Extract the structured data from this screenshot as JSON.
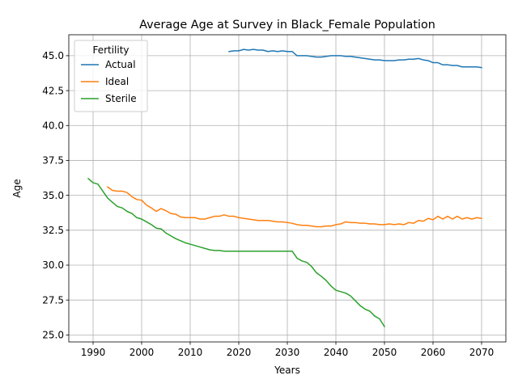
{
  "chart_data": {
    "type": "line",
    "title": "Average Age at Survey in Black_Female Population",
    "xlabel": "Years",
    "ylabel": "Age",
    "xlim": [
      1985,
      2075
    ],
    "ylim": [
      24.5,
      46.5
    ],
    "xticks": [
      1990,
      2000,
      2010,
      2020,
      2030,
      2040,
      2050,
      2060,
      2070
    ],
    "xtick_labels": [
      "1990",
      "2000",
      "2010",
      "2020",
      "2030",
      "2040",
      "2050",
      "2060",
      "2070"
    ],
    "yticks": [
      25.0,
      27.5,
      30.0,
      32.5,
      35.0,
      37.5,
      40.0,
      42.5,
      45.0
    ],
    "ytick_labels": [
      "25.0",
      "27.5",
      "30.0",
      "32.5",
      "35.0",
      "37.5",
      "40.0",
      "42.5",
      "45.0"
    ],
    "grid": true,
    "legend": {
      "title": "Fertility",
      "placement": "upper-left"
    },
    "series": [
      {
        "name": "Actual",
        "color": "#1f77b4",
        "x": [
          2018,
          2019,
          2020,
          2021,
          2022,
          2023,
          2024,
          2025,
          2026,
          2027,
          2028,
          2029,
          2030,
          2031,
          2032,
          2033,
          2034,
          2035,
          2036,
          2037,
          2038,
          2039,
          2040,
          2041,
          2042,
          2043,
          2044,
          2045,
          2046,
          2047,
          2048,
          2049,
          2050,
          2051,
          2052,
          2053,
          2054,
          2055,
          2056,
          2057,
          2058,
          2059,
          2060,
          2061,
          2062,
          2063,
          2064,
          2065,
          2066,
          2067,
          2068,
          2069,
          2070
        ],
        "y": [
          45.3,
          45.35,
          45.35,
          45.45,
          45.4,
          45.45,
          45.4,
          45.4,
          45.3,
          45.35,
          45.3,
          45.35,
          45.3,
          45.3,
          45.0,
          45.0,
          45.0,
          44.95,
          44.9,
          44.9,
          44.95,
          45.0,
          45.0,
          45.0,
          44.95,
          44.95,
          44.9,
          44.85,
          44.8,
          44.75,
          44.7,
          44.7,
          44.65,
          44.65,
          44.65,
          44.7,
          44.7,
          44.75,
          44.75,
          44.8,
          44.7,
          44.65,
          44.5,
          44.5,
          44.35,
          44.35,
          44.3,
          44.3,
          44.2,
          44.2,
          44.2,
          44.2,
          44.15
        ]
      },
      {
        "name": "Ideal",
        "color": "#ff7f0e",
        "x": [
          1993,
          1994,
          1995,
          1996,
          1997,
          1998,
          1999,
          2000,
          2001,
          2002,
          2003,
          2004,
          2005,
          2006,
          2007,
          2008,
          2009,
          2010,
          2011,
          2012,
          2013,
          2014,
          2015,
          2016,
          2017,
          2018,
          2019,
          2020,
          2021,
          2022,
          2023,
          2024,
          2025,
          2026,
          2027,
          2028,
          2029,
          2030,
          2031,
          2032,
          2033,
          2034,
          2035,
          2036,
          2037,
          2038,
          2039,
          2040,
          2041,
          2042,
          2043,
          2044,
          2045,
          2046,
          2047,
          2048,
          2049,
          2050,
          2051,
          2052,
          2053,
          2054,
          2055,
          2056,
          2057,
          2058,
          2059,
          2060,
          2061,
          2062,
          2063,
          2064,
          2065,
          2066,
          2067,
          2068,
          2069,
          2070
        ],
        "y": [
          35.6,
          35.35,
          35.3,
          35.3,
          35.2,
          34.9,
          34.7,
          34.65,
          34.3,
          34.1,
          33.85,
          34.05,
          33.9,
          33.7,
          33.65,
          33.45,
          33.4,
          33.4,
          33.4,
          33.3,
          33.3,
          33.4,
          33.5,
          33.5,
          33.6,
          33.5,
          33.5,
          33.4,
          33.35,
          33.3,
          33.25,
          33.2,
          33.2,
          33.2,
          33.15,
          33.1,
          33.1,
          33.05,
          33.0,
          32.9,
          32.85,
          32.85,
          32.8,
          32.75,
          32.75,
          32.8,
          32.8,
          32.9,
          32.95,
          33.1,
          33.05,
          33.05,
          33.0,
          33.0,
          32.95,
          32.95,
          32.9,
          32.9,
          32.95,
          32.9,
          32.95,
          32.9,
          33.05,
          33.0,
          33.2,
          33.15,
          33.35,
          33.25,
          33.5,
          33.3,
          33.5,
          33.3,
          33.5,
          33.3,
          33.4,
          33.3,
          33.4,
          33.35
        ]
      },
      {
        "name": "Sterile",
        "color": "#2ca02c",
        "x": [
          1989,
          1990,
          1991,
          1992,
          1993,
          1994,
          1995,
          1996,
          1997,
          1998,
          1999,
          2000,
          2001,
          2002,
          2003,
          2004,
          2005,
          2006,
          2007,
          2008,
          2009,
          2010,
          2011,
          2012,
          2013,
          2014,
          2015,
          2016,
          2017,
          2018,
          2019,
          2020,
          2021,
          2022,
          2023,
          2024,
          2025,
          2026,
          2027,
          2028,
          2029,
          2030,
          2031,
          2032,
          2033,
          2034,
          2035,
          2036,
          2037,
          2038,
          2039,
          2040,
          2041,
          2042,
          2043,
          2044,
          2045,
          2046,
          2047,
          2048,
          2049,
          2050
        ],
        "y": [
          36.2,
          35.9,
          35.8,
          35.3,
          34.8,
          34.5,
          34.2,
          34.1,
          33.85,
          33.7,
          33.4,
          33.3,
          33.1,
          32.9,
          32.65,
          32.6,
          32.3,
          32.1,
          31.9,
          31.75,
          31.6,
          31.5,
          31.4,
          31.3,
          31.2,
          31.1,
          31.05,
          31.05,
          31.0,
          31.0,
          31.0,
          31.0,
          31.0,
          31.0,
          31.0,
          31.0,
          31.0,
          31.0,
          31.0,
          31.0,
          31.0,
          31.0,
          31.0,
          30.5,
          30.3,
          30.2,
          29.9,
          29.45,
          29.2,
          28.9,
          28.5,
          28.2,
          28.1,
          28.0,
          27.8,
          27.45,
          27.1,
          26.85,
          26.7,
          26.35,
          26.15,
          25.6
        ]
      }
    ]
  }
}
